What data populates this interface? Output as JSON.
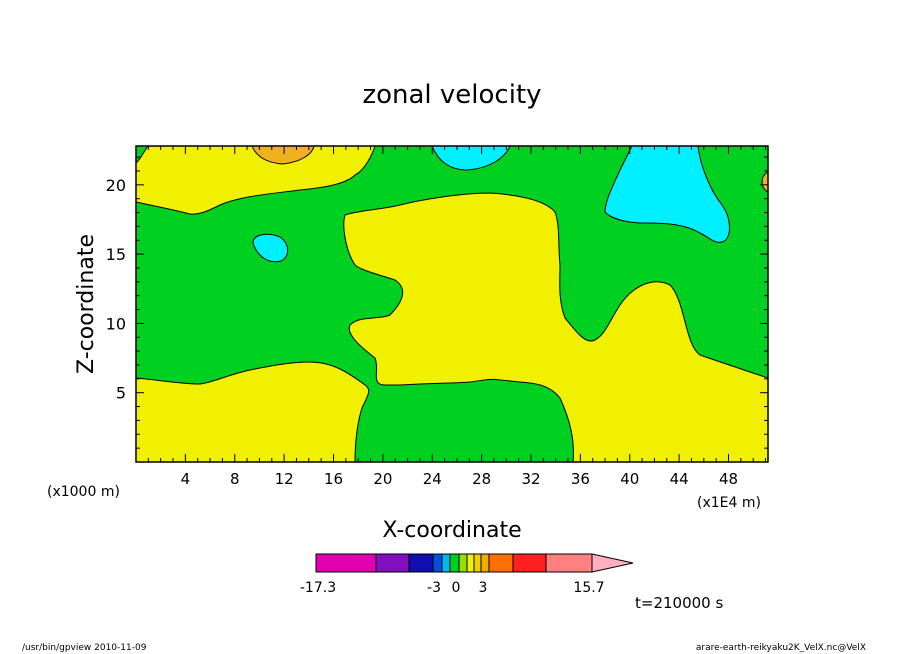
{
  "chart_data": {
    "type": "heatmap",
    "title": "zonal velocity",
    "xlabel": "X-coordinate",
    "ylabel": "Z-coordinate",
    "x_unit_left": "(x1000 m)",
    "x_unit_right": "(x1E4 m)",
    "xlim": [
      0,
      51.2
    ],
    "ylim": [
      0,
      22.8
    ],
    "x_ticks": [
      "4",
      "8",
      "12",
      "16",
      "20",
      "24",
      "28",
      "32",
      "36",
      "40",
      "44",
      "48"
    ],
    "x_tick_values": [
      4,
      8,
      12,
      16,
      20,
      24,
      28,
      32,
      36,
      40,
      44,
      48
    ],
    "y_ticks": [
      "5",
      "10",
      "15",
      "20"
    ],
    "y_tick_values": [
      5,
      10,
      15,
      20
    ],
    "colorbar": {
      "labels": [
        "-17.3",
        "-3",
        "0",
        "3",
        "15.7"
      ],
      "label_values": [
        -17.3,
        -3,
        0,
        3,
        15.7
      ],
      "colors": [
        "#e000b0",
        "#8010c0",
        "#1010b0",
        "#0050e0",
        "#00b8f0",
        "#00d020",
        "#90e000",
        "#f0f000",
        "#f0d000",
        "#f0b000",
        "#ff7000",
        "#ff2020",
        "#ff8080"
      ],
      "over_color": "#ffb0c0"
    },
    "colors": {
      "yellow": "#f0f000",
      "green": "#00d020",
      "cyan": "#00f0ff",
      "orange": "#f0b020"
    },
    "time_label": "t=210000 s",
    "footer_left": "/usr/bin/gpview  2010-11-09",
    "footer_right": "arare-earth-reikyaku2K_VelX.nc@VelX"
  }
}
